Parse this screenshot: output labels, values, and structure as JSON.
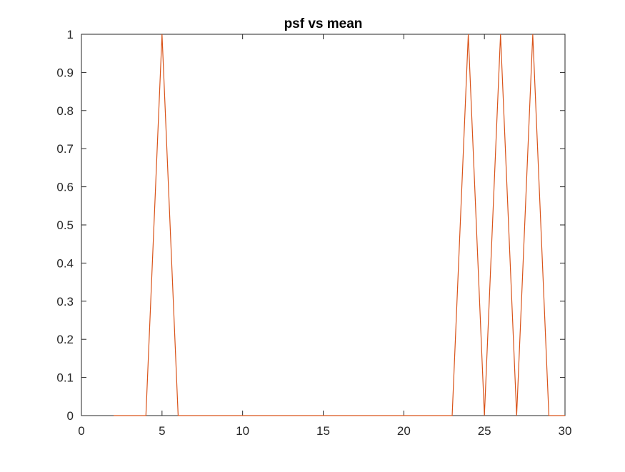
{
  "chart_data": {
    "type": "line",
    "title": "psf vs mean",
    "xlabel": "",
    "ylabel": "",
    "xlim": [
      0,
      30
    ],
    "ylim": [
      0,
      1
    ],
    "xticks": [
      0,
      5,
      10,
      15,
      20,
      25,
      30
    ],
    "yticks": [
      0,
      0.1,
      0.2,
      0.3,
      0.4,
      0.5,
      0.6,
      0.7,
      0.8,
      0.9,
      1
    ],
    "xtick_labels": [
      "0",
      "5",
      "10",
      "15",
      "20",
      "25",
      "30"
    ],
    "ytick_labels": [
      "0",
      "0.1",
      "0.2",
      "0.3",
      "0.4",
      "0.5",
      "0.6",
      "0.7",
      "0.8",
      "0.9",
      "1"
    ],
    "grid": false,
    "box": true,
    "series": [
      {
        "color": "#D95319",
        "x": [
          2,
          3,
          4,
          5,
          6,
          7,
          8,
          9,
          10,
          11,
          12,
          13,
          14,
          15,
          16,
          17,
          18,
          19,
          20,
          21,
          22,
          23,
          24,
          25,
          26,
          27,
          28,
          29,
          30
        ],
        "y": [
          0,
          0,
          0,
          1,
          0,
          0,
          0,
          0,
          0,
          0,
          0,
          0,
          0,
          0,
          0,
          0,
          0,
          0,
          0,
          0,
          0,
          0,
          1,
          0,
          1,
          0,
          1,
          0,
          0
        ]
      }
    ]
  }
}
